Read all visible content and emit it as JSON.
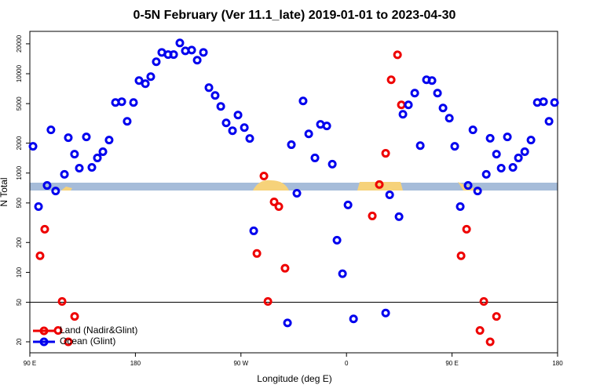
{
  "chart_data": {
    "type": "scatter",
    "title": "0-5N February (Ver 11.1_late)   2019-01-01 to 2023-04-30",
    "x_label": "Longitude (deg E)",
    "y_label": "N Total",
    "xlim": [
      90,
      540
    ],
    "ylim": [
      15.5,
      26700
    ],
    "log_y": true,
    "xticks": [
      {
        "value": 90,
        "label": "90 E"
      },
      180,
      {
        "value": 270,
        "label": "90 W"
      },
      {
        "value": 360,
        "label": "0"
      },
      {
        "value": 450,
        "label": "90 E"
      },
      {
        "value": 540,
        "label": "180"
      }
    ],
    "yticks": [
      20,
      50,
      100,
      200,
      500,
      1000,
      2000,
      5000,
      10000,
      20000
    ],
    "reference_line": 50,
    "legend": "bottom-left",
    "series": [
      {
        "name": "Land (Nadir&Glint)",
        "color": "#ee0000",
        "x": [
          98.7,
          102.7,
          114.1,
          117.5,
          122.8,
          128.2,
          283.6,
          289.6,
          293,
          298.3,
          302.3,
          307.6,
          382,
          388,
          393.4,
          398.1,
          403.5,
          406.8,
          457.7,
          462.4,
          473.8,
          477.1,
          482.5,
          487.9
        ],
        "values": [
          147,
          272,
          26,
          51,
          20,
          36,
          155,
          934,
          51,
          513,
          460,
          110,
          370,
          766,
          1580,
          8690,
          15500,
          4860,
          147,
          272,
          26,
          51,
          20,
          36
        ]
      },
      {
        "name": "Ocean (Glint)",
        "color": "#0000ee",
        "x": [
          92.7,
          97.4,
          104.7,
          108,
          112,
          119.5,
          122.8,
          128.1,
          132.2,
          138.2,
          142.9,
          147.6,
          152.3,
          157.6,
          163,
          168.4,
          173,
          178.4,
          183.1,
          188.5,
          193.1,
          197.8,
          202.5,
          207.9,
          212.6,
          217.9,
          222.6,
          228,
          232.7,
          238,
          242.7,
          248,
          252.8,
          257.4,
          262.8,
          267.5,
          272.9,
          277.5,
          280.9,
          309.7,
          313,
          317.7,
          323,
          327.8,
          333.1,
          337.8,
          343.2,
          347.9,
          351.9,
          356.6,
          361.3,
          366,
          393.4,
          396.8,
          404.8,
          408.1,
          412.8,
          418.2,
          422.9,
          428.2,
          432.9,
          437.6,
          442.3,
          447.7,
          452.3,
          457,
          463.7,
          467.8,
          471.8,
          479.2,
          482.5,
          487.9,
          491.9,
          497.2,
          501.9,
          506.6,
          512,
          517.3,
          522.7,
          528,
          532.7,
          537.4
        ],
        "values": [
          1860,
          460,
          750,
          2720,
          660,
          970,
          2270,
          1550,
          1120,
          2310,
          1140,
          1420,
          1640,
          2150,
          5130,
          5230,
          3320,
          5130,
          8540,
          7930,
          9340,
          13200,
          16400,
          15600,
          15600,
          20400,
          17000,
          17300,
          13700,
          16400,
          7240,
          6040,
          4690,
          3200,
          2670,
          3840,
          2870,
          2230,
          262,
          31,
          1930,
          626,
          5320,
          2480,
          1420,
          3090,
          2980,
          1230,
          211,
          97,
          478,
          34,
          39,
          604,
          364,
          3910,
          4860,
          6380,
          1890,
          8690,
          8540,
          6380,
          4520,
          3570,
          1860,
          460,
          750,
          2720,
          660,
          970,
          2240,
          1550,
          1120,
          2310,
          1140,
          1420,
          1640,
          2150,
          5130,
          5230,
          3320,
          5130
        ]
      }
    ]
  }
}
